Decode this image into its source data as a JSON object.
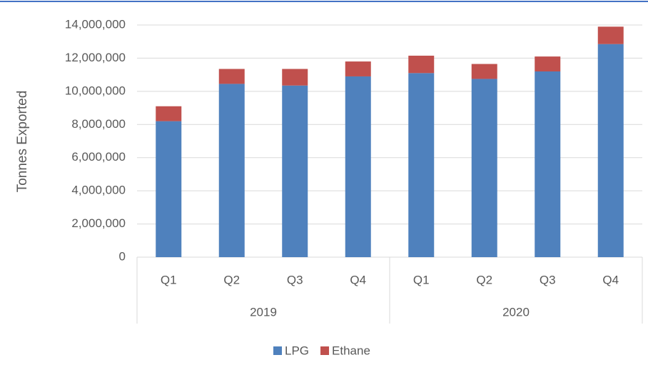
{
  "chart_data": {
    "type": "stacked-bar",
    "y_label": "Tonnes Exported",
    "groups": [
      {
        "name": "2019",
        "categories": [
          "Q1",
          "Q2",
          "Q3",
          "Q4"
        ]
      },
      {
        "name": "2020",
        "categories": [
          "Q1",
          "Q2",
          "Q3",
          "Q4"
        ]
      }
    ],
    "series": [
      {
        "name": "LPG",
        "color": "#4f81bd",
        "values": [
          8200000,
          10450000,
          10350000,
          10900000,
          11100000,
          10750000,
          11200000,
          12850000
        ]
      },
      {
        "name": "Ethane",
        "color": "#c0504d",
        "values": [
          900000,
          900000,
          1000000,
          900000,
          1050000,
          900000,
          900000,
          1050000
        ]
      }
    ],
    "ylim": [
      0,
      14000000
    ],
    "yticks": [
      0,
      {
        "value": 2000000,
        "label": "2,000,000"
      },
      {
        "value": 4000000,
        "label": "4,000,000"
      },
      {
        "value": 6000000,
        "label": "6,000,000"
      },
      {
        "value": 8000000,
        "label": "8,000,000"
      },
      {
        "value": 10000000,
        "label": "10,000,000"
      },
      {
        "value": 12000000,
        "label": "12,000,000"
      },
      {
        "value": 14000000,
        "label": "14,000,000"
      }
    ],
    "grid": true,
    "legend": "bottom"
  }
}
